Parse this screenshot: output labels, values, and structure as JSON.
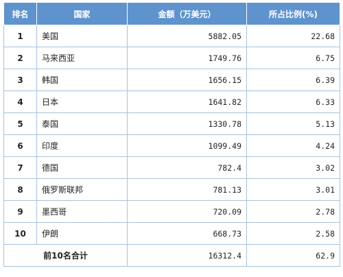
{
  "headers": [
    "排名",
    "国家",
    "金额（万美元）",
    "所占比例(%)"
  ],
  "rows": [
    {
      "rank": "1",
      "country": "美国",
      "amount": "5882.05",
      "share": "22.68"
    },
    {
      "rank": "2",
      "country": "马来西亚",
      "amount": "1749.76",
      "share": "6.75"
    },
    {
      "rank": "3",
      "country": "韩国",
      "amount": "1656.15",
      "share": "6.39"
    },
    {
      "rank": "4",
      "country": "日本",
      "amount": "1641.82",
      "share": "6.33"
    },
    {
      "rank": "5",
      "country": "泰国",
      "amount": "1330.78",
      "share": "5.13"
    },
    {
      "rank": "6",
      "country": "印度",
      "amount": "1099.49",
      "share": "4.24"
    },
    {
      "rank": "7",
      "country": "德国",
      "amount": "782.4",
      "share": "3.02"
    },
    {
      "rank": "8",
      "country": "俄罗斯联邦",
      "amount": "781.13",
      "share": "3.01"
    },
    {
      "rank": "9",
      "country": "墨西哥",
      "amount": "720.09",
      "share": "2.78"
    },
    {
      "rank": "10",
      "country": "伊朗",
      "amount": "668.73",
      "share": "2.58"
    }
  ],
  "total": {
    "label": "前10名合计",
    "amount": "16312.4",
    "share": "62.9"
  },
  "colors": {
    "header_bg": "#5f93cd",
    "header_text": "#ffffff",
    "grid": "#a9c1de"
  }
}
